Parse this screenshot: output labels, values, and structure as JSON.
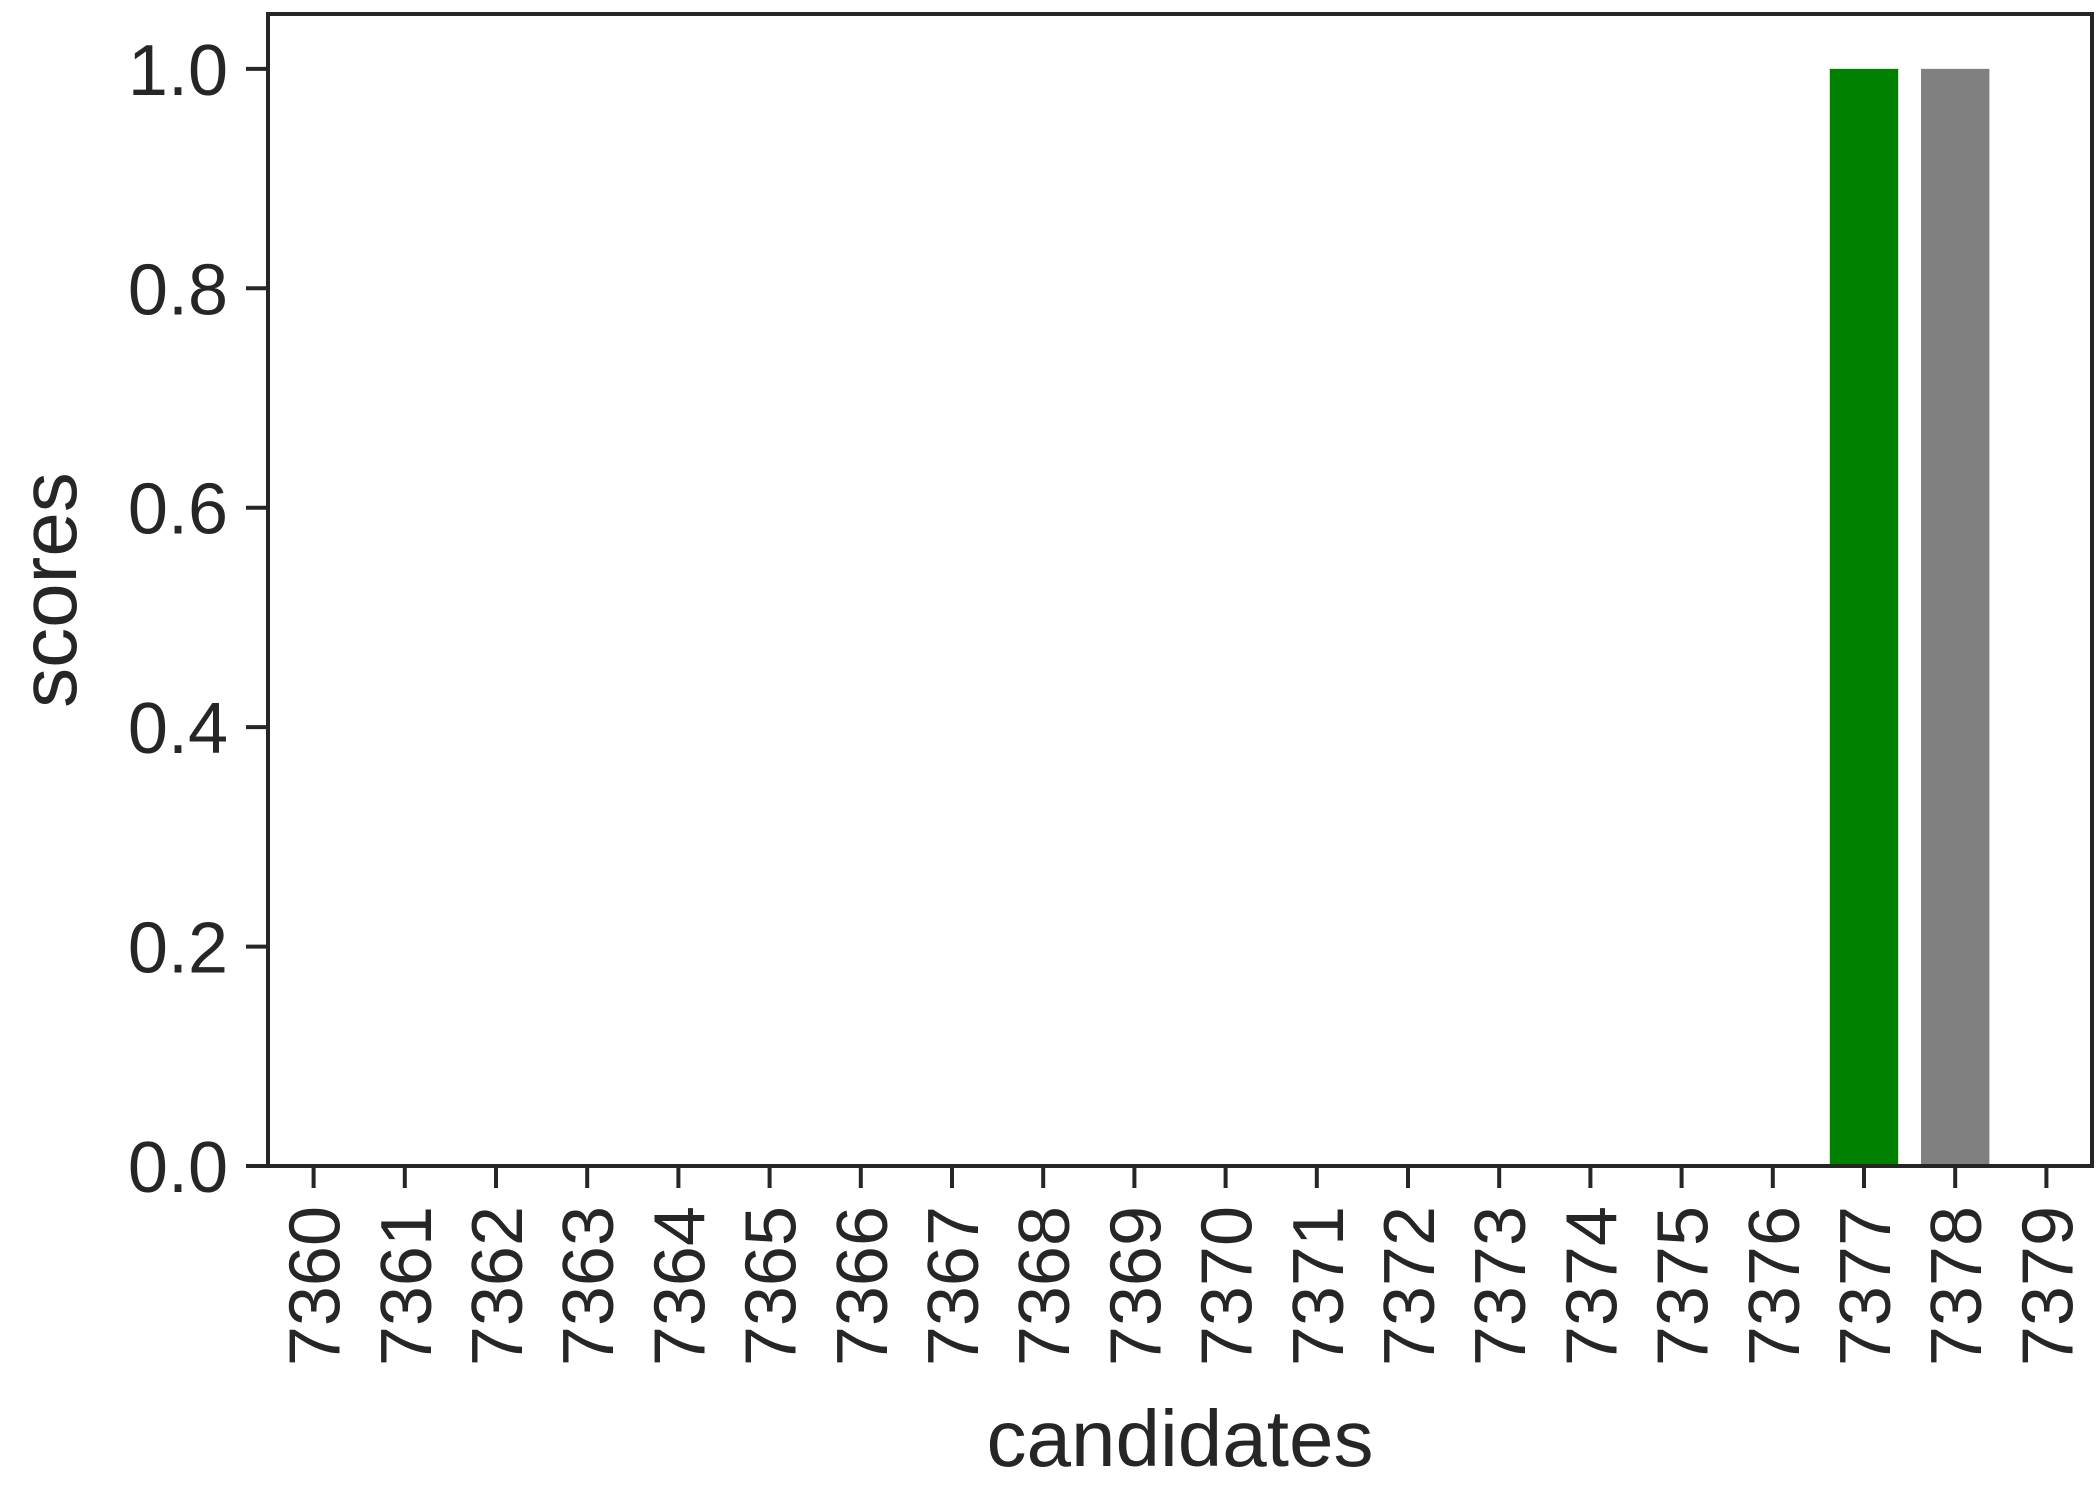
{
  "chart_data": {
    "type": "bar",
    "xlabel": "candidates",
    "ylabel": "scores",
    "ylim": [
      0,
      1.05
    ],
    "yticks": [
      "0.0",
      "0.2",
      "0.4",
      "0.6",
      "0.8",
      "1.0"
    ],
    "ytick_values": [
      0,
      0.2,
      0.4,
      0.6,
      0.8,
      1.0
    ],
    "categories": [
      "7360",
      "7361",
      "7362",
      "7363",
      "7364",
      "7365",
      "7366",
      "7367",
      "7368",
      "7369",
      "7370",
      "7371",
      "7372",
      "7373",
      "7374",
      "7375",
      "7376",
      "7377",
      "7378",
      "7379"
    ],
    "values": [
      0,
      0,
      0,
      0,
      0,
      0,
      0,
      0,
      0,
      0,
      0,
      0,
      0,
      0,
      0,
      0,
      0,
      1.0,
      1.0,
      0
    ],
    "bar_colors": [
      "#808080",
      "#808080",
      "#808080",
      "#808080",
      "#808080",
      "#808080",
      "#808080",
      "#808080",
      "#808080",
      "#808080",
      "#808080",
      "#808080",
      "#808080",
      "#808080",
      "#808080",
      "#808080",
      "#808080",
      "#008000",
      "#808080",
      "#808080"
    ],
    "grid": false,
    "axis_color": "#262626"
  }
}
